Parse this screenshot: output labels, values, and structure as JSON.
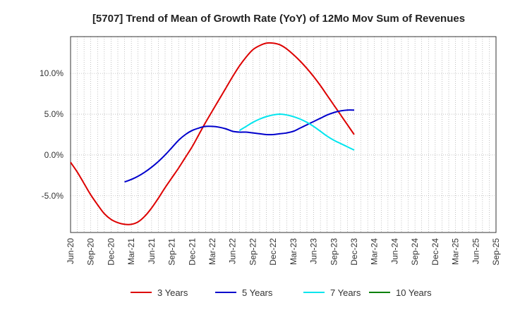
{
  "chart_data": {
    "type": "line",
    "title": "[5707]  Trend of Mean of Growth Rate (YoY) of 12Mo Mov Sum of Revenues",
    "xlabel": "",
    "ylabel": "",
    "ylim": [
      -9.5,
      14.5
    ],
    "y_ticks": [
      10,
      5,
      0,
      -5
    ],
    "y_tick_labels": [
      "10.0%",
      "5.0%",
      "0.0%",
      "-5.0%"
    ],
    "x_tick_labels": [
      "Jun-20",
      "Sep-20",
      "Dec-20",
      "Mar-21",
      "Jun-21",
      "Sep-21",
      "Dec-21",
      "Mar-22",
      "Jun-22",
      "Sep-22",
      "Dec-22",
      "Mar-23",
      "Jun-23",
      "Sep-23",
      "Dec-23",
      "Mar-24",
      "Jun-24",
      "Sep-24",
      "Dec-24",
      "Mar-25",
      "Jun-25",
      "Sep-25"
    ],
    "grid": true,
    "legend_position": "bottom",
    "series": [
      {
        "name": "3 Years",
        "color": "#dd0000",
        "x": [
          0,
          1,
          2,
          3,
          4,
          5,
          6,
          7,
          8,
          9,
          10,
          11,
          12,
          13,
          14,
          15,
          16,
          17,
          18,
          19,
          20,
          21,
          22,
          23,
          24,
          25,
          26,
          27,
          28,
          29,
          30,
          31,
          32,
          33,
          34,
          35,
          36,
          37,
          38,
          39,
          40,
          41,
          42,
          43,
          44,
          45,
          46,
          47,
          48,
          49,
          50,
          51,
          52,
          53,
          54,
          55,
          56,
          57,
          58,
          59,
          60
        ],
        "values": [
          -0.9,
          -2.1,
          -3.5,
          -4.9,
          -6.1,
          -7.2,
          -7.9,
          -8.3,
          -8.5,
          -8.5,
          -8.2,
          -7.5,
          -6.5,
          -5.3,
          -4.0,
          -2.8,
          -1.6,
          -0.3,
          1.0,
          2.5,
          4.0,
          5.4,
          6.8,
          8.2,
          9.6,
          10.9,
          12.0,
          12.9,
          13.4,
          13.7,
          13.7,
          13.5,
          13.0,
          12.3,
          11.5,
          10.6,
          9.6,
          8.5,
          7.3,
          6.1,
          4.9,
          3.7,
          2.5,
          null,
          null,
          null,
          null,
          null,
          null,
          null,
          null,
          null,
          null,
          null,
          null,
          null,
          null,
          null,
          null,
          null,
          null
        ]
      },
      {
        "name": "5 Years",
        "color": "#0000cc",
        "x": [
          8,
          9,
          10,
          11,
          12,
          13,
          14,
          15,
          16,
          17,
          18,
          19,
          20,
          21,
          22,
          23,
          24,
          25,
          26,
          27,
          28,
          29,
          30,
          31,
          32,
          33,
          34,
          35,
          36,
          37,
          38,
          39,
          40,
          41,
          42
        ],
        "values": [
          -3.3,
          -3.0,
          -2.6,
          -2.1,
          -1.5,
          -0.8,
          0.0,
          0.9,
          1.8,
          2.5,
          3.0,
          3.3,
          3.5,
          3.5,
          3.4,
          3.2,
          2.9,
          2.8,
          2.8,
          2.7,
          2.6,
          2.5,
          2.5,
          2.6,
          2.7,
          2.9,
          3.3,
          3.7,
          4.1,
          4.5,
          4.9,
          5.2,
          5.4,
          5.5,
          5.5
        ]
      },
      {
        "name": "7 Years",
        "color": "#00e5ee",
        "x": [
          25,
          26,
          27,
          28,
          29,
          30,
          31,
          32,
          33,
          34,
          35,
          36,
          37,
          38,
          39,
          40,
          41,
          42
        ],
        "values": [
          3.0,
          3.5,
          4.0,
          4.4,
          4.7,
          4.9,
          5.0,
          4.9,
          4.7,
          4.4,
          4.0,
          3.5,
          2.9,
          2.3,
          1.8,
          1.4,
          1.0,
          0.6
        ]
      },
      {
        "name": "10 Years",
        "color": "#008000",
        "x": [],
        "values": []
      }
    ]
  }
}
